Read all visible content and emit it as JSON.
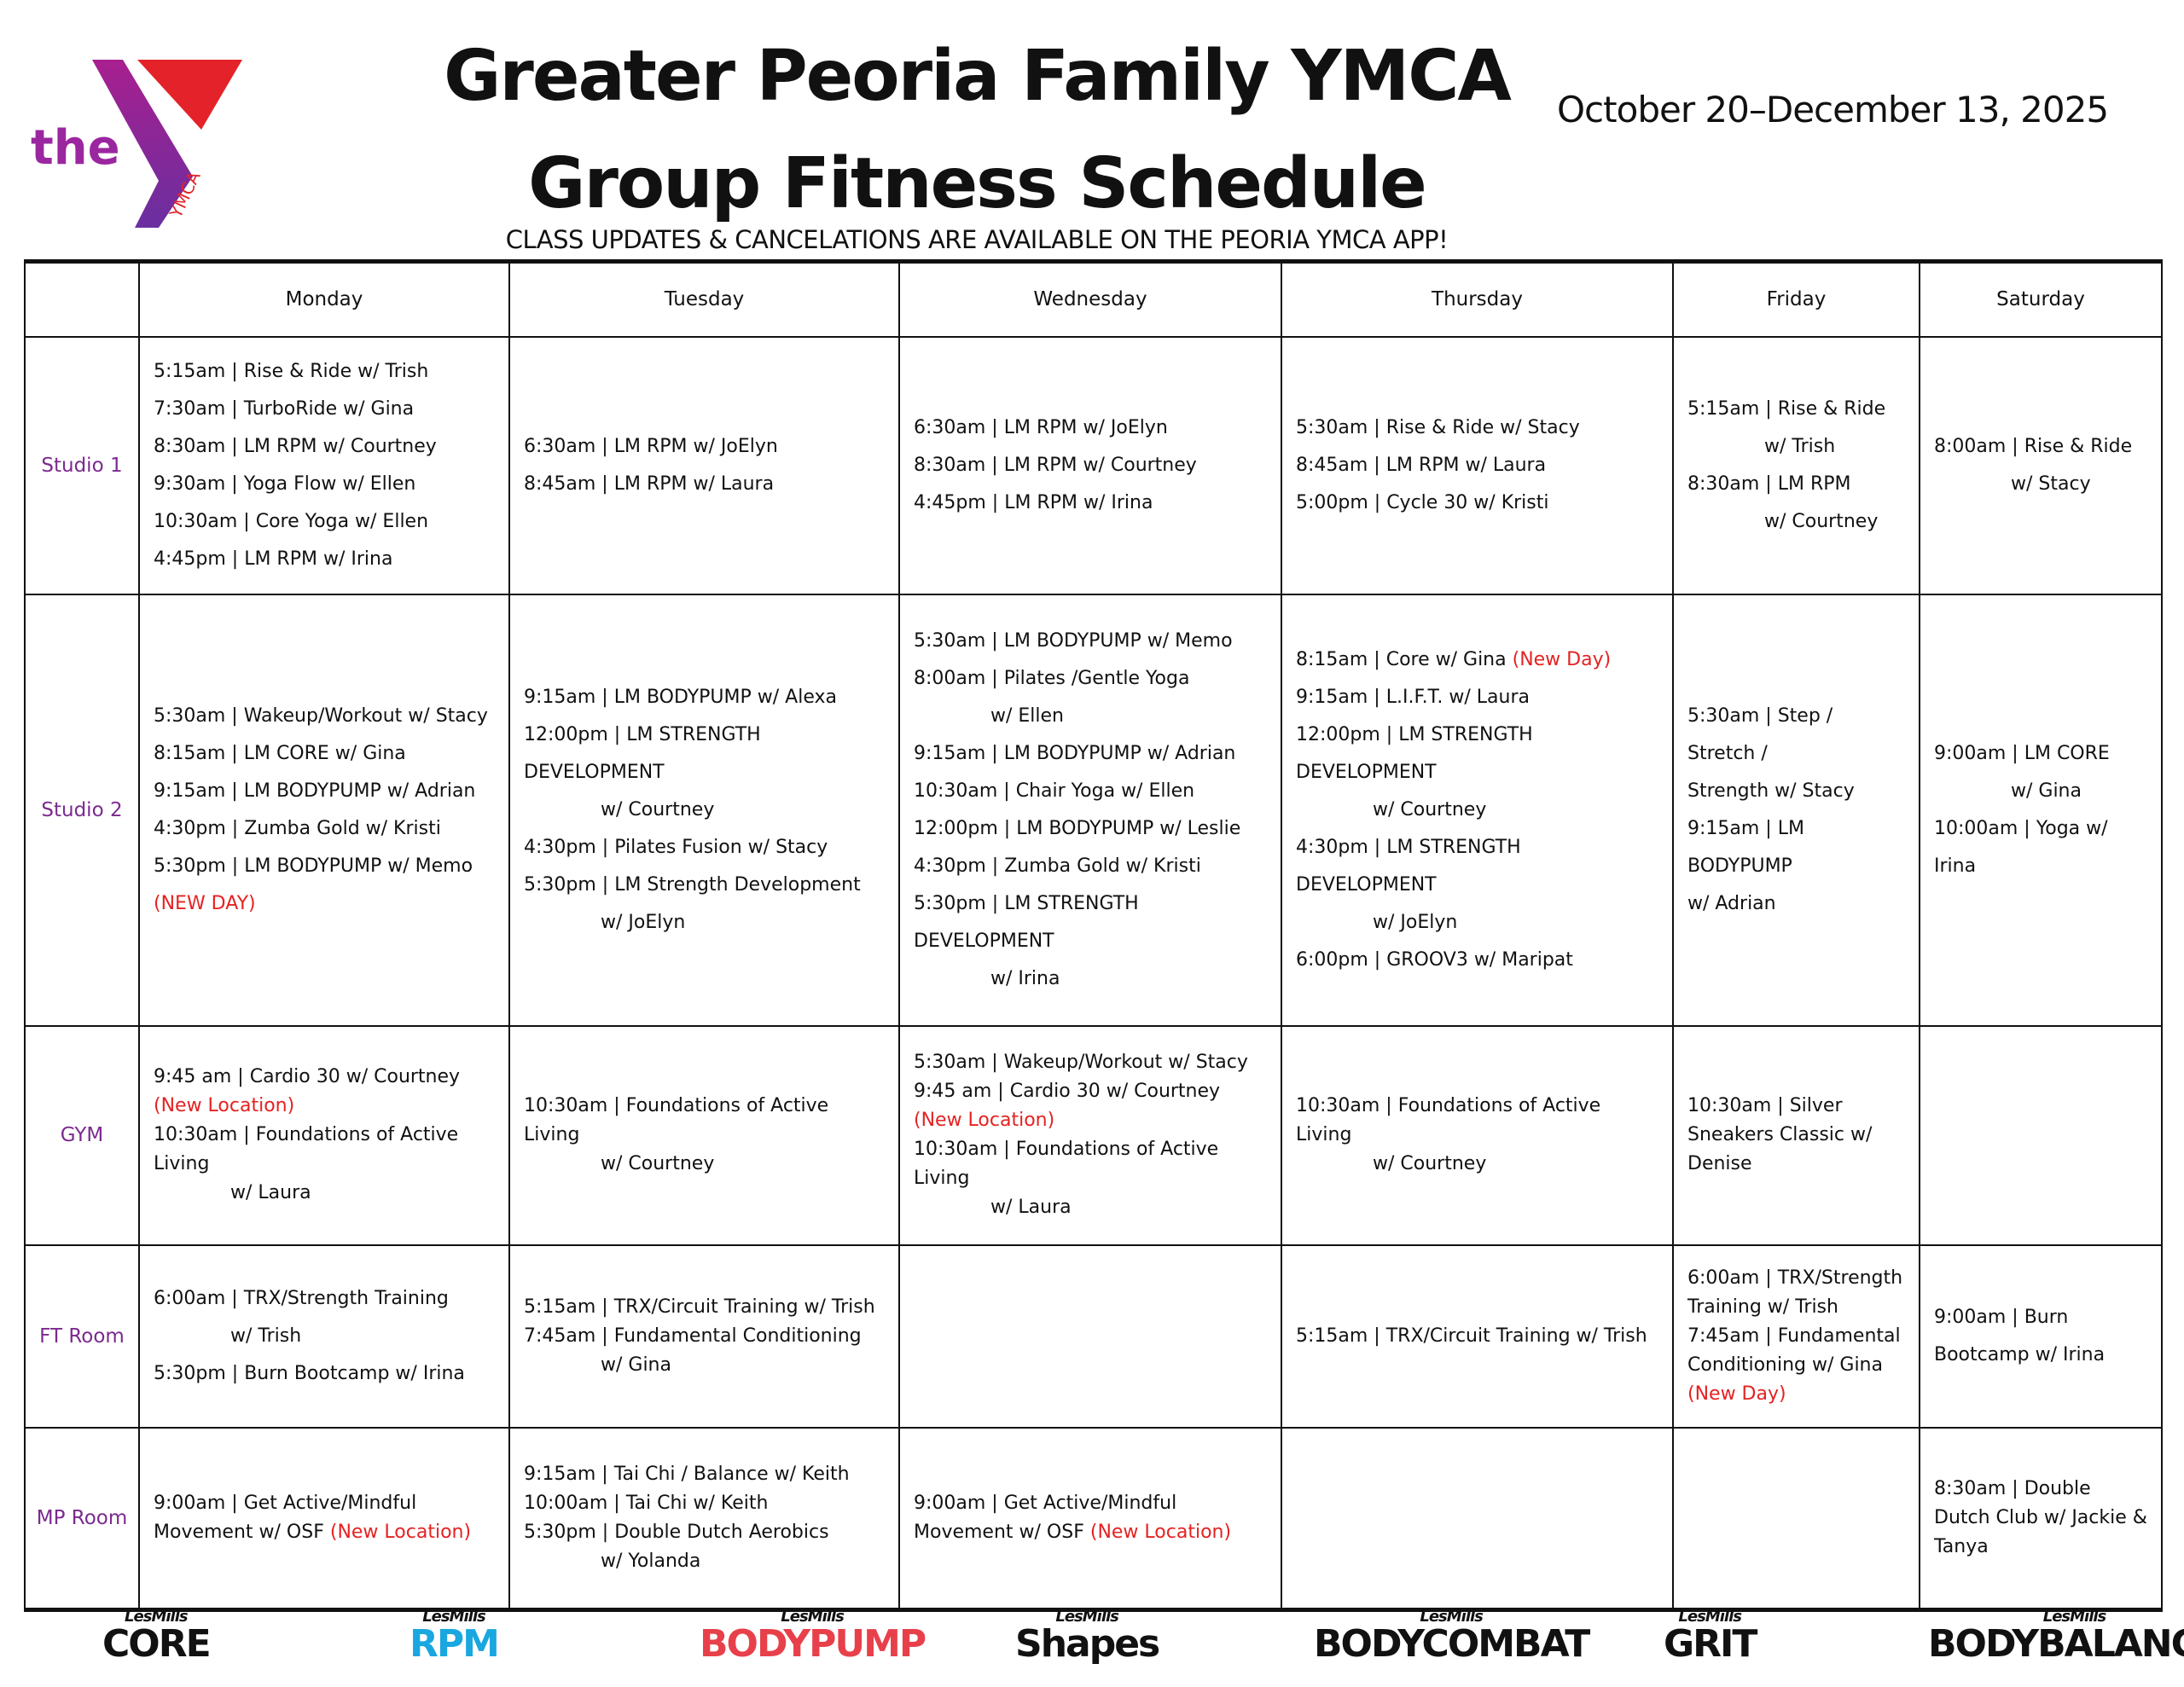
{
  "header": {
    "title": "Greater Peoria Family YMCA",
    "subtitle": "Group Fitness Schedule",
    "dates": "October 20–December 13, 2025",
    "notice": "CLASS UPDATES & CANCELATIONS ARE AVAILABLE ON THE PEORIA YMCA APP!",
    "logo_text": "the YMCA"
  },
  "colors": {
    "room": "#7b2a8f",
    "new": "#e52222",
    "ymca_purple": "#9b27a0",
    "ymca_red": "#e32329"
  },
  "days": [
    "Monday",
    "Tuesday",
    "Wednesday",
    "Thursday",
    "Friday",
    "Saturday"
  ],
  "rows": [
    {
      "room": "Studio 1",
      "cells": [
        [
          [
            "5:15am | Rise & Ride w/ Trish"
          ],
          [
            "7:30am | TurboRide w/ Gina"
          ],
          [
            "8:30am | LM RPM w/ Courtney"
          ],
          [
            "9:30am | Yoga Flow w/ Ellen"
          ],
          [
            "10:30am | Core Yoga w/ Ellen"
          ],
          [
            "4:45pm | LM RPM w/ Irina"
          ]
        ],
        [
          [
            "6:30am | LM RPM w/ JoElyn"
          ],
          [
            "8:45am | LM RPM w/ Laura"
          ]
        ],
        [
          [
            "6:30am | LM RPM w/ JoElyn"
          ],
          [
            "8:30am | LM RPM w/ Courtney"
          ],
          [
            "4:45pm | LM RPM w/ Irina"
          ]
        ],
        [
          [
            "5:30am | Rise & Ride w/ Stacy"
          ],
          [
            "8:45am | LM RPM w/ Laura"
          ],
          [
            "5:00pm | Cycle 30 w/ Kristi"
          ]
        ],
        [
          [
            "5:15am | Rise & Ride"
          ],
          [
            "w/ Trish",
            "",
            "i"
          ],
          [
            "8:30am | LM RPM"
          ],
          [
            "w/ Courtney",
            "",
            "i"
          ]
        ],
        [
          [
            "8:00am | Rise & Ride"
          ],
          [
            "w/ Stacy",
            "",
            "i"
          ]
        ]
      ]
    },
    {
      "room": "Studio 2",
      "cells": [
        [
          [
            "5:30am | Wakeup/Workout w/ Stacy"
          ],
          [
            "8:15am | LM CORE w/ Gina"
          ],
          [
            "9:15am | LM BODYPUMP w/ Adrian"
          ],
          [
            "4:30pm | Zumba Gold w/ Kristi"
          ],
          [
            "5:30pm | LM BODYPUMP w/ Memo"
          ],
          [
            "",
            "(NEW DAY)"
          ]
        ],
        [
          [
            "9:15am | LM BODYPUMP w/ Alexa"
          ],
          [
            "12:00pm | LM STRENGTH DEVELOPMENT"
          ],
          [
            "w/ Courtney",
            "",
            "i"
          ],
          [
            "4:30pm | Pilates Fusion w/ Stacy"
          ],
          [
            "5:30pm | LM Strength Development"
          ],
          [
            "w/ JoElyn",
            "",
            "i"
          ]
        ],
        [
          [
            "5:30am | LM BODYPUMP w/ Memo"
          ],
          [
            "8:00am | Pilates /Gentle Yoga"
          ],
          [
            "w/ Ellen",
            "",
            "i"
          ],
          [
            "9:15am | LM BODYPUMP w/ Adrian"
          ],
          [
            "10:30am | Chair Yoga w/ Ellen"
          ],
          [
            "12:00pm | LM BODYPUMP w/ Leslie"
          ],
          [
            "4:30pm | Zumba Gold w/ Kristi"
          ],
          [
            "5:30pm | LM STRENGTH DEVELOPMENT"
          ],
          [
            "w/ Irina",
            "",
            "i"
          ]
        ],
        [
          [
            "8:15am | Core w/ Gina ",
            "(New Day)"
          ],
          [
            "9:15am | L.I.F.T. w/ Laura"
          ],
          [
            "12:00pm | LM STRENGTH DEVELOPMENT"
          ],
          [
            "w/ Courtney",
            "",
            "i"
          ],
          [
            "4:30pm | LM STRENGTH DEVELOPMENT"
          ],
          [
            "w/ JoElyn",
            "",
            "i"
          ],
          [
            "6:00pm | GROOV3 w/ Maripat"
          ]
        ],
        [
          [
            "5:30am | Step / Stretch /"
          ],
          [
            "Strength w/ Stacy"
          ],
          [
            "9:15am | LM BODYPUMP"
          ],
          [
            "w/ Adrian"
          ]
        ],
        [
          [
            "9:00am | LM CORE"
          ],
          [
            "w/ Gina",
            "",
            "i"
          ],
          [
            "10:00am | Yoga w/ Irina"
          ]
        ]
      ]
    },
    {
      "room": "GYM",
      "cells": [
        [
          [
            "9:45 am | Cardio 30 w/ Courtney ",
            "(New Location)"
          ],
          [
            "10:30am | Foundations of Active Living"
          ],
          [
            "w/ Laura",
            "",
            "i"
          ]
        ],
        [
          [
            "10:30am | Foundations of Active Living"
          ],
          [
            "w/ Courtney",
            "",
            "i"
          ]
        ],
        [
          [
            "5:30am | Wakeup/Workout w/ Stacy"
          ],
          [
            "9:45 am | Cardio 30 w/ Courtney ",
            "(New Location)"
          ],
          [
            "10:30am | Foundations of Active Living"
          ],
          [
            "w/ Laura",
            "",
            "i"
          ]
        ],
        [
          [
            "10:30am | Foundations of Active Living"
          ],
          [
            "w/ Courtney",
            "",
            "i"
          ]
        ],
        [
          [
            "10:30am | Silver Sneakers Classic w/ Denise"
          ]
        ],
        []
      ]
    },
    {
      "room": "FT Room",
      "cells": [
        [
          [
            "6:00am | TRX/Strength Training"
          ],
          [
            "w/ Trish",
            "",
            "i"
          ],
          [
            "5:30pm | Burn Bootcamp w/ Irina"
          ]
        ],
        [
          [
            "5:15am | TRX/Circuit Training w/ Trish"
          ],
          [
            "7:45am | Fundamental Conditioning"
          ],
          [
            "w/ Gina",
            "",
            "i"
          ]
        ],
        [],
        [
          [
            "5:15am | TRX/Circuit Training w/ Trish"
          ]
        ],
        [
          [
            "6:00am | TRX/Strength Training w/ Trish"
          ],
          [
            "7:45am | Fundamental Conditioning w/ Gina"
          ],
          [
            "",
            "(New Day)"
          ]
        ],
        [
          [
            "9:00am | Burn Bootcamp w/ Irina"
          ]
        ]
      ]
    },
    {
      "room": "MP Room",
      "cells": [
        [
          [
            "9:00am | Get Active/Mindful Movement w/ OSF ",
            "(New Location)"
          ]
        ],
        [
          [
            "9:15am | Tai Chi / Balance w/ Keith"
          ],
          [
            "10:00am | Tai Chi w/ Keith"
          ],
          [
            "5:30pm | Double Dutch Aerobics"
          ],
          [
            "w/ Yolanda",
            "",
            "i"
          ]
        ],
        [
          [
            "9:00am | Get Active/Mindful Movement w/ OSF ",
            "(New Location)"
          ]
        ],
        [],
        [],
        [
          [
            "8:30am | Double Dutch Club w/ Jackie & Tanya"
          ]
        ]
      ]
    }
  ],
  "footer_logos": [
    {
      "brand": "LesMills",
      "name": "CORE",
      "color": "#111111"
    },
    {
      "brand": "LesMills",
      "name": "RPM",
      "color": "#1aa7e0"
    },
    {
      "brand": "LesMills",
      "name": "BODYPUMP",
      "color": "#e8404a"
    },
    {
      "brand": "LesMills",
      "name": "Shapes",
      "color": "#111111"
    },
    {
      "brand": "LesMills",
      "name": "BODYCOMBAT",
      "color": "#111111"
    },
    {
      "brand": "LesMills",
      "name": "GRIT",
      "color": "#111111"
    },
    {
      "brand": "LesMills",
      "name": "BODYBALANCE",
      "color": "#111111"
    }
  ]
}
